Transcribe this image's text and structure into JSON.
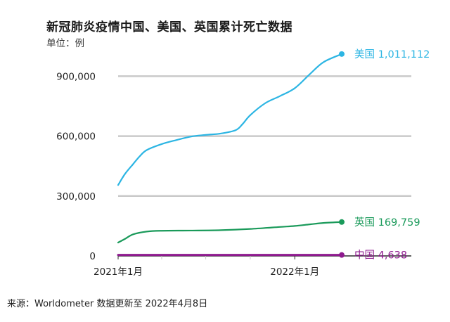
{
  "title": "新冠肺炎疫情中国、美国、英国累计死亡数据",
  "unit_label": "单位：例",
  "source_text": "来源：Worldometer 数据更新至 2022年4月8日",
  "chart_data": {
    "type": "line",
    "title": "新冠肺炎疫情中国、美国、英国累计死亡数据",
    "ylabel": "单位：例",
    "xlabel": "",
    "ylim": [
      0,
      1000000
    ],
    "xlim": [
      "2021-01-01",
      "2022-04-08"
    ],
    "grid": true,
    "y_ticks": [
      0,
      300000,
      600000,
      900000
    ],
    "y_tick_labels": [
      "0",
      "300,000",
      "600,000",
      "900,000"
    ],
    "x_ticks": [
      "2021-01-01",
      "2022-01-01"
    ],
    "x_tick_labels": [
      "2021年1月",
      "2022年1月"
    ],
    "series": [
      {
        "name": "美国",
        "color": "#2cb5e3",
        "end_label": "美国 1,011,112",
        "x": [
          "2021-01-01",
          "2021-01-15",
          "2021-02-01",
          "2021-02-15",
          "2021-03-01",
          "2021-04-01",
          "2021-05-01",
          "2021-06-01",
          "2021-07-01",
          "2021-08-01",
          "2021-09-01",
          "2021-09-15",
          "2021-10-01",
          "2021-11-01",
          "2021-12-01",
          "2022-01-01",
          "2022-02-01",
          "2022-03-01",
          "2022-04-08"
        ],
        "values": [
          355000,
          410000,
          460000,
          500000,
          530000,
          560000,
          580000,
          598000,
          606000,
          613000,
          630000,
          660000,
          705000,
          765000,
          800000,
          840000,
          910000,
          970000,
          1011112
        ]
      },
      {
        "name": "英国",
        "color": "#1a9a5a",
        "end_label": "英国 169,759",
        "x": [
          "2021-01-01",
          "2021-01-15",
          "2021-02-01",
          "2021-03-01",
          "2021-04-01",
          "2021-06-01",
          "2021-08-01",
          "2021-10-01",
          "2021-12-01",
          "2022-01-01",
          "2022-02-01",
          "2022-03-01",
          "2022-04-08"
        ],
        "values": [
          67000,
          85000,
          108000,
          122000,
          126000,
          127000,
          129000,
          135000,
          145000,
          150000,
          158000,
          165000,
          169759
        ]
      },
      {
        "name": "中国",
        "color": "#8e1a8e",
        "end_label": "中国 4,638",
        "x": [
          "2021-01-01",
          "2022-04-08"
        ],
        "values": [
          4800,
          4638
        ]
      }
    ]
  }
}
